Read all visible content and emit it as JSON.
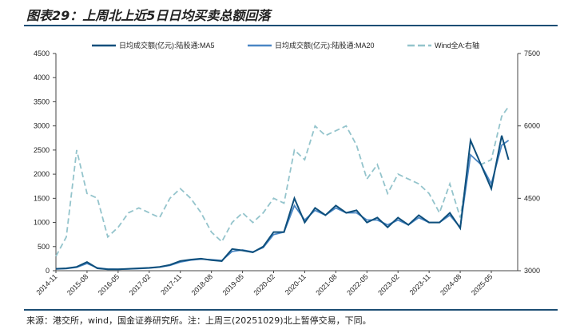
{
  "title": "图表29：上周北上近5日日均买卖总额回落",
  "source": "来源：港交所，wind，国金证券研究所。注：上周三(20251029)北上暂停交易，下同。",
  "colors": {
    "ma5": "#0e4f7c",
    "ma20": "#4a86c4",
    "wind": "#94c4cc"
  },
  "chart_data": {
    "type": "line",
    "title": "图表29：上周北上近5日日均买卖总额回落",
    "legend_position": "top",
    "y_left": {
      "range": [
        0,
        4500
      ],
      "ticks": [
        0,
        500,
        1000,
        1500,
        2000,
        2500,
        3000,
        3500,
        4000,
        4500
      ]
    },
    "y_right": {
      "range": [
        3000,
        7500
      ],
      "ticks": [
        3000,
        4500,
        6000,
        7500
      ]
    },
    "x_ticks": [
      "2014-11",
      "2015-08",
      "2016-05",
      "2017-02",
      "2017-11",
      "2018-08",
      "2019-05",
      "2020-02",
      "2020-11",
      "2021-08",
      "2022-05",
      "2023-02",
      "2023-11",
      "2024-08",
      "2025-05"
    ],
    "x": [
      "2014-11",
      "2015-02",
      "2015-05",
      "2015-08",
      "2015-11",
      "2016-02",
      "2016-05",
      "2016-08",
      "2016-11",
      "2017-02",
      "2017-05",
      "2017-08",
      "2017-11",
      "2018-02",
      "2018-05",
      "2018-08",
      "2018-11",
      "2019-02",
      "2019-05",
      "2019-08",
      "2019-11",
      "2020-02",
      "2020-05",
      "2020-08",
      "2020-11",
      "2021-02",
      "2021-05",
      "2021-08",
      "2021-11",
      "2022-02",
      "2022-05",
      "2022-08",
      "2022-11",
      "2023-02",
      "2023-05",
      "2023-08",
      "2023-11",
      "2024-02",
      "2024-05",
      "2024-08",
      "2024-11",
      "2025-02",
      "2025-05",
      "2025-08",
      "2025-10"
    ],
    "series": [
      {
        "name": "日均成交额(亿元):陆股通:MA5",
        "axis": "left",
        "style": "solid",
        "values": [
          40,
          50,
          80,
          180,
          50,
          30,
          30,
          40,
          50,
          60,
          80,
          120,
          200,
          230,
          250,
          220,
          200,
          450,
          420,
          380,
          500,
          800,
          800,
          1500,
          1000,
          1300,
          1150,
          1350,
          1200,
          1250,
          1000,
          1100,
          900,
          1100,
          950,
          1150,
          1000,
          1000,
          1200,
          880,
          2700,
          2200,
          1700,
          2800,
          2300
        ]
      },
      {
        "name": "日均成交额(亿元):陆股通:MA20",
        "axis": "left",
        "style": "solid",
        "values": [
          35,
          45,
          70,
          150,
          60,
          35,
          30,
          35,
          45,
          55,
          75,
          110,
          180,
          220,
          240,
          230,
          210,
          400,
          430,
          390,
          480,
          750,
          800,
          1350,
          1050,
          1250,
          1150,
          1300,
          1200,
          1200,
          1050,
          1050,
          950,
          1050,
          950,
          1100,
          1000,
          1000,
          1150,
          900,
          2400,
          2200,
          1800,
          2600,
          2700
        ]
      },
      {
        "name": "Wind全A:右轴",
        "axis": "right",
        "style": "dashed",
        "values": [
          3300,
          3700,
          5500,
          4600,
          4500,
          3700,
          3900,
          4200,
          4300,
          4200,
          4100,
          4500,
          4700,
          4500,
          4200,
          3800,
          3600,
          4000,
          4200,
          4000,
          4200,
          4500,
          4400,
          5500,
          5300,
          6000,
          5800,
          5900,
          6000,
          5600,
          4900,
          5200,
          4600,
          5000,
          4900,
          4800,
          4600,
          4200,
          4800,
          4100,
          5400,
          5200,
          5300,
          6200,
          6400
        ]
      }
    ]
  }
}
